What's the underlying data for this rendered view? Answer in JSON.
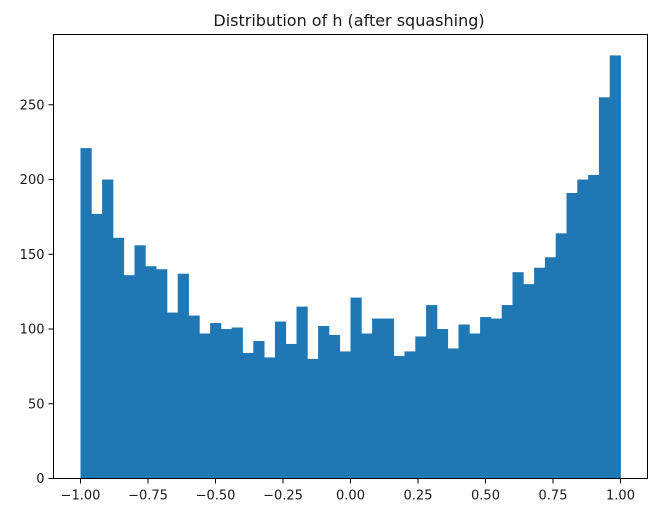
{
  "chart_data": {
    "type": "bar",
    "title": "Distribution of h (after squashing)",
    "xlabel": "",
    "ylabel": "",
    "xlim": [
      -1.1,
      1.1
    ],
    "ylim": [
      0,
      297
    ],
    "grid": false,
    "bar_color": "#1f77b4",
    "x_ticks": [
      -1.0,
      -0.75,
      -0.5,
      -0.25,
      0.0,
      0.25,
      0.5,
      0.75,
      1.0
    ],
    "x_tick_labels": [
      "−1.00",
      "−0.75",
      "−0.50",
      "−0.25",
      "0.00",
      "0.25",
      "0.50",
      "0.75",
      "1.00"
    ],
    "y_ticks": [
      0,
      50,
      100,
      150,
      200,
      250
    ],
    "y_tick_labels": [
      "0",
      "50",
      "100",
      "150",
      "200",
      "250"
    ],
    "bin_range": [
      -1.0,
      1.0
    ],
    "bin_count": 50,
    "values": [
      221,
      177,
      200,
      161,
      136,
      156,
      142,
      140,
      111,
      137,
      109,
      97,
      104,
      100,
      101,
      84,
      92,
      81,
      105,
      90,
      115,
      80,
      102,
      96,
      85,
      121,
      97,
      107,
      107,
      82,
      85,
      95,
      116,
      100,
      87,
      103,
      97,
      108,
      107,
      116,
      138,
      130,
      141,
      148,
      164,
      191,
      200,
      203,
      255,
      283
    ]
  }
}
